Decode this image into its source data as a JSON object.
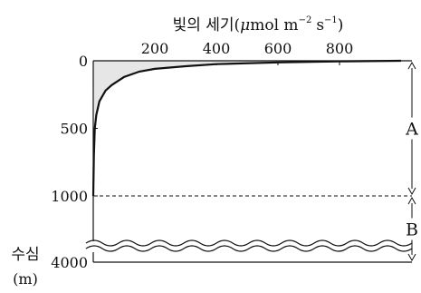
{
  "chart_data": {
    "type": "line",
    "x_axis": {
      "title_main": "빛의 세기",
      "title_unit_open": "(",
      "title_mu": "μ",
      "title_unit_rest": "mol m",
      "title_exp1": "−2",
      "title_unit_s": "s",
      "title_exp2": "−1",
      "title_unit_close": ")",
      "position": "top",
      "range": [
        0,
        1000
      ],
      "ticks": [
        200,
        400,
        600,
        800
      ],
      "tick_labels": [
        "200",
        "400",
        "600",
        "800"
      ]
    },
    "y_axis": {
      "title_line1": "수심",
      "title_line2": "(m)",
      "inverted": true,
      "broken": true,
      "ticks": [
        0,
        500,
        1000,
        4000
      ],
      "tick_labels": [
        "0",
        "500",
        "1000",
        "4000"
      ]
    },
    "series": [
      {
        "x": [
          1000,
          800,
          600,
          400,
          300,
          200,
          150,
          100,
          80,
          60,
          40,
          20,
          10,
          5,
          2,
          0
        ],
        "y": [
          0,
          5,
          12,
          25,
          40,
          60,
          80,
          120,
          150,
          180,
          220,
          300,
          400,
          500,
          700,
          1000
        ]
      }
    ],
    "reference_line": {
      "y": 1000,
      "style": "dashed"
    },
    "zones": [
      {
        "label": "A",
        "from": 0,
        "to": 1000
      },
      {
        "label": "B",
        "from": 1000,
        "to": 4000
      }
    ]
  }
}
